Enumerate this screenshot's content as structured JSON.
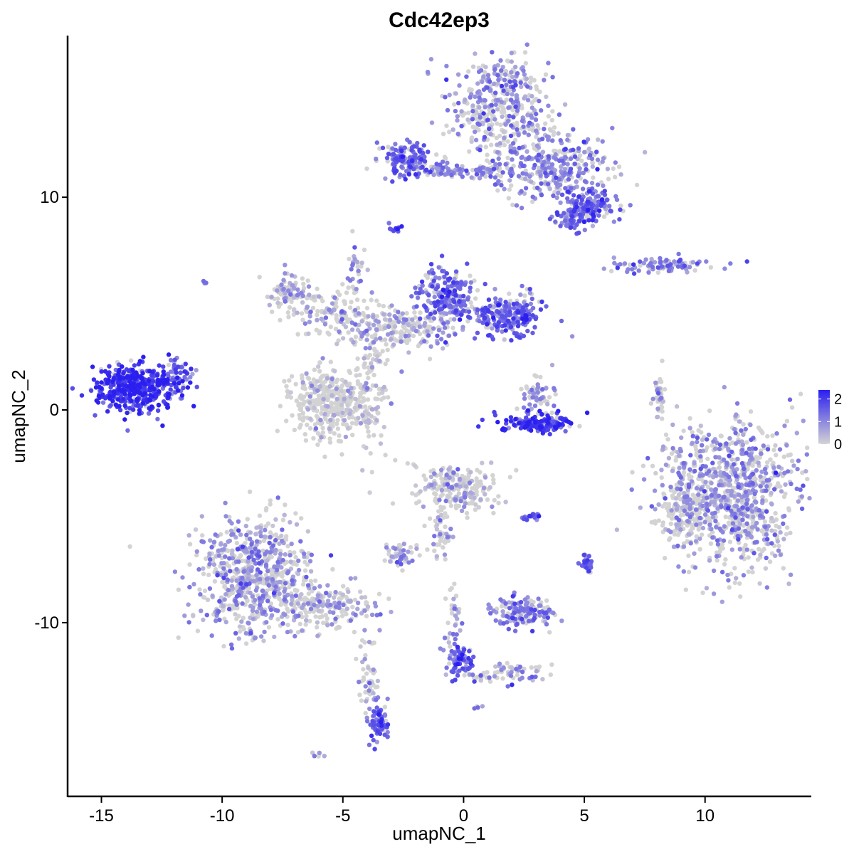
{
  "chart_data": {
    "type": "scatter",
    "title": "Cdc42ep3",
    "xlabel": "umapNC_1",
    "ylabel": "umapNC_2",
    "xlim": [
      -16.4,
      14.4
    ],
    "ylim": [
      -18.2,
      17.6
    ],
    "x_ticks": [
      -15,
      -10,
      -5,
      0,
      5,
      10
    ],
    "x_tick_labels": [
      "-15",
      "-10",
      "-5",
      "0",
      "5",
      "10"
    ],
    "y_ticks": [
      10,
      0,
      -10
    ],
    "y_tick_labels": [
      "10",
      "0",
      "-10"
    ],
    "color_scale": {
      "low": "#d3d3d3",
      "high": "#2b1ff0",
      "min": 0,
      "max": 2.4,
      "breaks": [
        2,
        1,
        0
      ],
      "break_labels": [
        "2",
        "1",
        "0"
      ],
      "legend_position": "right"
    },
    "clusters": [
      {
        "x": 1.6,
        "y": 14.2,
        "sx": 1.0,
        "sy": 1.2,
        "n": 420,
        "mean": 0.9
      },
      {
        "x": 3.8,
        "y": 11.4,
        "sx": 1.2,
        "sy": 0.8,
        "n": 300,
        "mean": 1.0
      },
      {
        "x": 5.2,
        "y": 9.6,
        "sx": 0.6,
        "sy": 0.4,
        "n": 160,
        "mean": 1.4
      },
      {
        "x": 4.4,
        "y": 8.9,
        "sx": 0.3,
        "sy": 0.3,
        "n": 50,
        "mean": 1.3
      },
      {
        "x": -2.4,
        "y": 11.8,
        "sx": 0.55,
        "sy": 0.4,
        "n": 140,
        "mean": 1.5
      },
      {
        "x": 0.3,
        "y": 11.2,
        "sx": 1.4,
        "sy": 0.18,
        "n": 120,
        "mean": 1.0
      },
      {
        "x": -2.8,
        "y": 8.6,
        "sx": 0.12,
        "sy": 0.12,
        "n": 10,
        "mean": 1.5
      },
      {
        "x": 8.3,
        "y": 6.8,
        "sx": 1.2,
        "sy": 0.16,
        "n": 90,
        "mean": 1.1
      },
      {
        "x": -7.2,
        "y": 5.5,
        "sx": 0.5,
        "sy": 0.5,
        "n": 90,
        "mean": 0.7
      },
      {
        "x": -5.4,
        "y": 4.6,
        "sx": 0.9,
        "sy": 0.6,
        "n": 110,
        "mean": 0.6
      },
      {
        "x": -0.7,
        "y": 5.3,
        "sx": 0.6,
        "sy": 0.7,
        "n": 230,
        "mean": 1.3
      },
      {
        "x": 1.8,
        "y": 4.4,
        "sx": 0.8,
        "sy": 0.5,
        "n": 230,
        "mean": 1.5
      },
      {
        "x": -2.6,
        "y": 3.8,
        "sx": 1.1,
        "sy": 0.5,
        "n": 200,
        "mean": 0.6
      },
      {
        "x": -3.8,
        "y": 1.0,
        "sx": 0.4,
        "sy": 1.6,
        "n": 120,
        "mean": 0.4
      },
      {
        "x": -5.5,
        "y": 0.3,
        "sx": 0.8,
        "sy": 0.8,
        "n": 380,
        "mean": 0.2
      },
      {
        "x": -4.5,
        "y": 6.5,
        "sx": 0.25,
        "sy": 0.8,
        "n": 30,
        "mean": 0.8
      },
      {
        "x": -13.6,
        "y": 1.0,
        "sx": 0.8,
        "sy": 0.55,
        "n": 420,
        "mean": 2.1
      },
      {
        "x": -11.9,
        "y": 1.6,
        "sx": 0.35,
        "sy": 0.5,
        "n": 60,
        "mean": 1.4
      },
      {
        "x": -10.7,
        "y": 6.0,
        "sx": 0.05,
        "sy": 0.05,
        "n": 3,
        "mean": 1.5
      },
      {
        "x": 3.2,
        "y": -0.6,
        "sx": 0.7,
        "sy": 0.25,
        "n": 160,
        "mean": 1.9
      },
      {
        "x": 3.1,
        "y": 0.7,
        "sx": 0.35,
        "sy": 0.5,
        "n": 60,
        "mean": 0.9
      },
      {
        "x": 8.1,
        "y": 0.6,
        "sx": 0.12,
        "sy": 0.6,
        "n": 40,
        "mean": 0.5
      },
      {
        "x": 11.0,
        "y": -4.0,
        "sx": 1.4,
        "sy": 1.7,
        "n": 950,
        "mean": 0.8
      },
      {
        "x": 9.0,
        "y": -4.9,
        "sx": 0.4,
        "sy": 0.6,
        "n": 110,
        "mean": 0.3
      },
      {
        "x": -0.3,
        "y": -3.7,
        "sx": 0.8,
        "sy": 0.5,
        "n": 220,
        "mean": 0.5
      },
      {
        "x": -0.9,
        "y": -5.8,
        "sx": 0.25,
        "sy": 0.8,
        "n": 50,
        "mean": 0.5
      },
      {
        "x": -2.6,
        "y": -6.8,
        "sx": 0.35,
        "sy": 0.25,
        "n": 50,
        "mean": 0.8
      },
      {
        "x": -8.7,
        "y": -7.9,
        "sx": 1.2,
        "sy": 1.3,
        "n": 700,
        "mean": 0.8
      },
      {
        "x": -5.5,
        "y": -9.3,
        "sx": 1.0,
        "sy": 0.5,
        "n": 180,
        "mean": 0.6
      },
      {
        "x": -3.9,
        "y": -12.8,
        "sx": 0.2,
        "sy": 1.2,
        "n": 50,
        "mean": 0.6
      },
      {
        "x": -3.5,
        "y": -14.7,
        "sx": 0.2,
        "sy": 0.45,
        "n": 70,
        "mean": 1.5
      },
      {
        "x": 2.5,
        "y": -9.5,
        "sx": 0.6,
        "sy": 0.4,
        "n": 150,
        "mean": 1.1
      },
      {
        "x": 2.8,
        "y": -5.0,
        "sx": 0.2,
        "sy": 0.08,
        "n": 20,
        "mean": 1.6
      },
      {
        "x": 5.1,
        "y": -7.3,
        "sx": 0.15,
        "sy": 0.25,
        "n": 30,
        "mean": 1.3
      },
      {
        "x": -0.1,
        "y": -11.8,
        "sx": 0.3,
        "sy": 0.4,
        "n": 80,
        "mean": 1.5
      },
      {
        "x": 1.7,
        "y": -12.4,
        "sx": 0.9,
        "sy": 0.3,
        "n": 70,
        "mean": 0.8
      },
      {
        "x": -0.4,
        "y": -9.8,
        "sx": 0.2,
        "sy": 0.8,
        "n": 30,
        "mean": 0.7
      },
      {
        "x": 0.6,
        "y": -14.0,
        "sx": 0.1,
        "sy": 0.1,
        "n": 5,
        "mean": 0.8
      },
      {
        "x": -6.0,
        "y": -16.2,
        "sx": 0.15,
        "sy": 0.08,
        "n": 6,
        "mean": 0.6
      }
    ]
  }
}
